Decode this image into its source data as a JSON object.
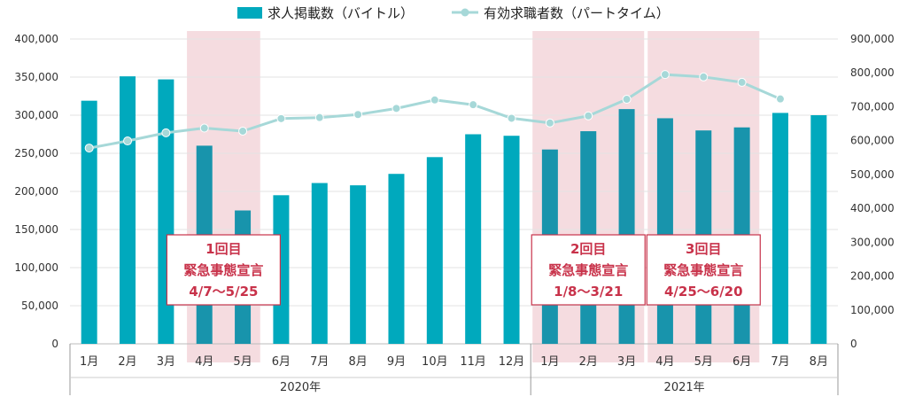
{
  "chart_data": {
    "type": "bar",
    "categories": [
      "1月",
      "2月",
      "3月",
      "4月",
      "5月",
      "6月",
      "7月",
      "8月",
      "9月",
      "10月",
      "11月",
      "12月",
      "1月",
      "2月",
      "3月",
      "4月",
      "5月",
      "6月",
      "7月",
      "8月"
    ],
    "years": [
      {
        "label": "2020年",
        "from": 0,
        "to": 11
      },
      {
        "label": "2021年",
        "from": 12,
        "to": 19
      }
    ],
    "series": [
      {
        "name": "求人掲載数（バイトル）",
        "type": "bar",
        "axis": "left",
        "color": "#00a9bd",
        "highlight_color": "#1894ac",
        "values": [
          319000,
          351000,
          347000,
          260000,
          175000,
          195000,
          211000,
          208000,
          223000,
          245000,
          275000,
          273000,
          255000,
          279000,
          308000,
          296000,
          280000,
          284000,
          303000,
          300000
        ]
      },
      {
        "name": "有効求職者数（パートタイム）",
        "type": "line",
        "axis": "right",
        "color": "#a6d8d8",
        "values": [
          578000,
          599000,
          623000,
          637000,
          628000,
          665000,
          668000,
          677000,
          695000,
          720000,
          706000,
          666000,
          652000,
          673000,
          722000,
          795000,
          788000,
          772000,
          723000,
          null
        ]
      }
    ],
    "left_axis": {
      "min": 0,
      "max": 400000,
      "ticks": [
        "0",
        "50,000",
        "100,000",
        "150,000",
        "200,000",
        "250,000",
        "300,000",
        "350,000",
        "400,000"
      ]
    },
    "right_axis": {
      "min": 0,
      "max": 900000,
      "ticks": [
        "0",
        "100,000",
        "200,000",
        "300,000",
        "400,000",
        "500,000",
        "600,000",
        "700,000",
        "800,000",
        "900,000"
      ]
    },
    "grid": true,
    "legend_position": "top-center",
    "periods": [
      {
        "from": 3,
        "to": 4,
        "lines": [
          "1回目",
          "緊急事態宣言",
          "4/7～5/25"
        ]
      },
      {
        "from": 12,
        "to": 14,
        "lines": [
          "2回目",
          "緊急事態宣言",
          "1/8～3/21"
        ]
      },
      {
        "from": 15,
        "to": 17,
        "lines": [
          "3回目",
          "緊急事態宣言",
          "4/25～6/20"
        ]
      }
    ],
    "period_color": "#f5dce0",
    "annotation_color": "#c8324a"
  }
}
